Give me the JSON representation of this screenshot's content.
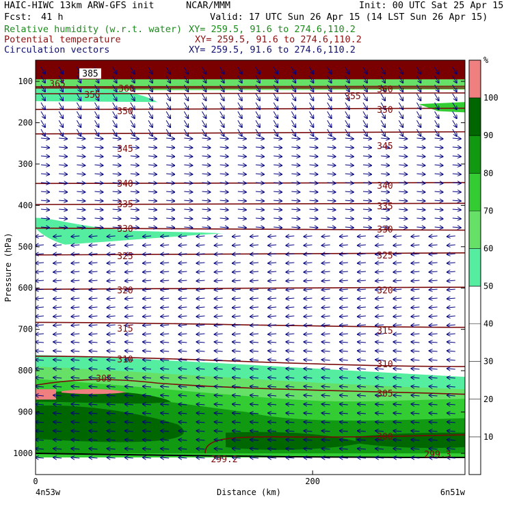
{
  "header": {
    "title": "HAIC-HIWC 13km ARW-GFS init",
    "center": "NCAR/MMM",
    "init": "Init: 00 UTC Sat 25 Apr 15",
    "fcst_label": "Fcst:",
    "fcst_value": "41 h",
    "valid": "Valid: 17 UTC Sun 26 Apr 15 (14 LST Sun 26 Apr 15)",
    "fields": [
      {
        "name": "Relative humidity (w.r.t. water)",
        "xy": "XY= 259.5, 91.6 to 274.6,110.2",
        "color": "#1a8a1a"
      },
      {
        "name": "Potential temperature",
        "xy": "XY= 259.5, 91.6 to 274.6,110.2",
        "color": "#8b1010"
      },
      {
        "name": "Circulation vectors",
        "xy": "XY= 259.5, 91.6 to 274.6,110.2",
        "color": "#101070"
      }
    ]
  },
  "chart_data": {
    "type": "cross-section",
    "xlabel": "Distance (km)",
    "ylabel": "Pressure (hPa)",
    "x_range_km": [
      0,
      310
    ],
    "x_ticks": [
      0,
      200
    ],
    "y_range_hpa": [
      1050,
      75
    ],
    "y_ticks": [
      100,
      200,
      300,
      400,
      500,
      600,
      700,
      800,
      900,
      1000
    ],
    "endpoint_left": "4n53w",
    "endpoint_right": "6n51w",
    "colorbar": {
      "unit": "%",
      "levels": [
        10,
        20,
        30,
        40,
        50,
        60,
        70,
        80,
        90,
        100
      ],
      "bands": [
        {
          "from": 50,
          "to": 60,
          "color": "#55eea0"
        },
        {
          "from": 60,
          "to": 70,
          "color": "#66e066"
        },
        {
          "from": 70,
          "to": 80,
          "color": "#33cc33"
        },
        {
          "from": 80,
          "to": 90,
          "color": "#119911"
        },
        {
          "from": 90,
          "to": 100,
          "color": "#006600"
        },
        {
          "from": 100,
          "to": 110,
          "color": "#f08080"
        }
      ]
    },
    "theta_contours": [
      {
        "value": 385,
        "label": "385",
        "p_left": 80,
        "p_right": 80
      },
      {
        "value": 365,
        "label": "365",
        "p_left": 113,
        "p_right": 112
      },
      {
        "value": 360,
        "label": "360",
        "p_left": 116,
        "p_right": 116
      },
      {
        "value": 355,
        "label": "355",
        "p_left": 130,
        "p_right": 128
      },
      {
        "value": 350,
        "label": "350",
        "p_left": 168,
        "p_right": 165
      },
      {
        "value": 345,
        "label": "345",
        "p_left": 227,
        "p_right": 222
      },
      {
        "value": 340,
        "label": "340",
        "p_left": 347,
        "p_right": 345
      },
      {
        "value": 335,
        "label": "335",
        "p_left": 398,
        "p_right": 395
      },
      {
        "value": 330,
        "label": "330",
        "p_left": 455,
        "p_right": 460
      },
      {
        "value": 325,
        "label": "325",
        "p_left": 520,
        "p_right": 515
      },
      {
        "value": 320,
        "label": "320",
        "p_left": 603,
        "p_right": 598
      },
      {
        "value": 315,
        "label": "315",
        "p_left": 683,
        "p_right": 695
      },
      {
        "value": 310,
        "label": "310",
        "p_left": 765,
        "p_right": 790
      },
      {
        "value": 305,
        "label": "305",
        "p_left": 835,
        "p_right": 857
      },
      {
        "value": 300,
        "label": "300",
        "p_left": 960,
        "p_right": 955
      },
      {
        "value": 299.2,
        "label": "299.2",
        "p_left": 1000,
        "p_right": 1000
      },
      {
        "value": 299.3,
        "label": "299.3",
        "p_left": 1000,
        "p_right": 1000
      }
    ],
    "rh_regions": [
      {
        "level": 60,
        "description": "upper layer near 100 hPa",
        "p_range": [
          80,
          190
        ]
      },
      {
        "level": 50,
        "description": "mid-level moist tongue",
        "p_range": [
          430,
          495
        ],
        "x_range_km": [
          0,
          135
        ]
      },
      {
        "level": 50,
        "description": "boundary layer moist air",
        "p_range": [
          760,
          1010
        ],
        "x_range_km": [
          0,
          310
        ]
      },
      {
        "level": 90,
        "description": "saturated lower layer",
        "p_range": [
          860,
          1000
        ]
      },
      {
        "level": 100,
        "description": "supersaturated pocket",
        "p_range": [
          830,
          870
        ],
        "x_range_km": [
          0,
          60
        ]
      }
    ],
    "vectors": {
      "upper_dir": "westward",
      "upper_p_range": [
        75,
        200
      ],
      "low_dir": "westward"
    }
  }
}
